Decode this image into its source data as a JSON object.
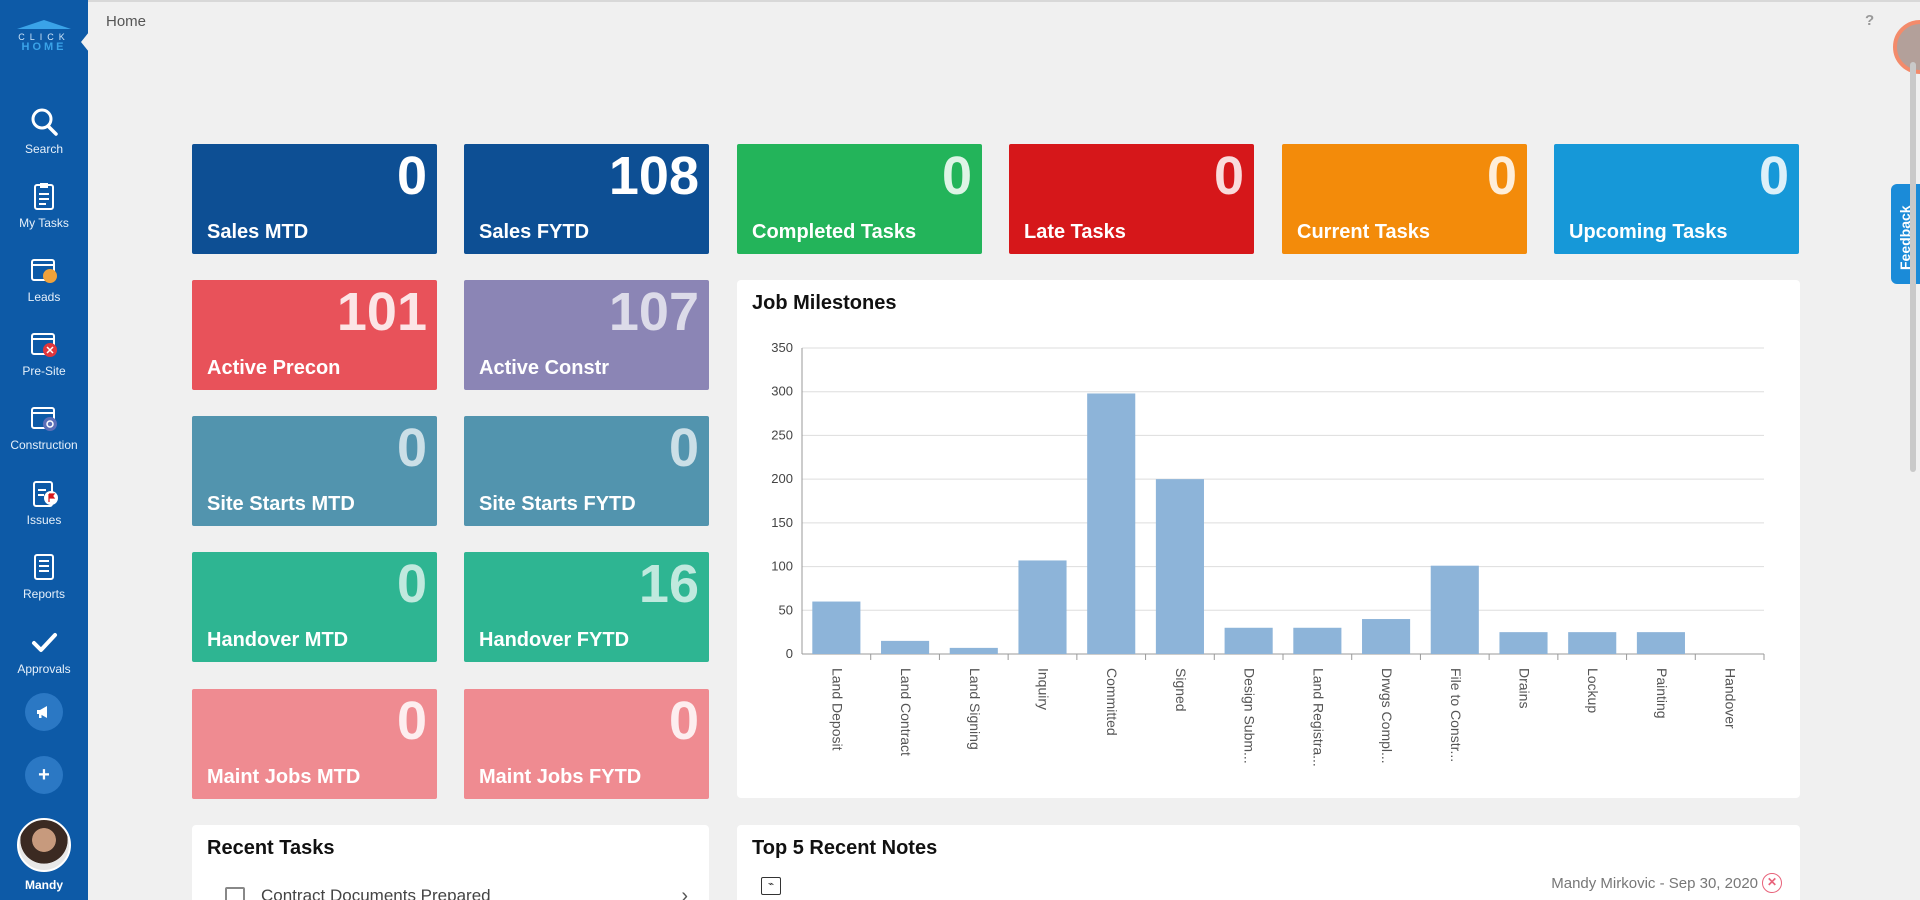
{
  "app": {
    "logo_line1": "CLICK",
    "logo_line2": "HOME",
    "breadcrumb": "Home",
    "help": "?",
    "feedback": "Feedback"
  },
  "sidebar": {
    "items": [
      {
        "label": "Search",
        "icon": "search-icon"
      },
      {
        "label": "My Tasks",
        "icon": "clipboard-icon"
      },
      {
        "label": "Leads",
        "icon": "leads-icon"
      },
      {
        "label": "Pre-Site",
        "icon": "presite-icon"
      },
      {
        "label": "Construction",
        "icon": "construction-icon"
      },
      {
        "label": "Issues",
        "icon": "issues-icon"
      },
      {
        "label": "Reports",
        "icon": "reports-icon"
      },
      {
        "label": "Approvals",
        "icon": "checkmark-icon"
      }
    ],
    "announce_icon": "megaphone-icon",
    "add_label": "+",
    "user_name": "Mandy"
  },
  "tiles": [
    {
      "label": "Sales MTD",
      "value": "0",
      "color": "#0d4f94"
    },
    {
      "label": "Sales FYTD",
      "value": "108",
      "color": "#0d4f94"
    },
    {
      "label": "Completed Tasks",
      "value": "0",
      "color": "#23b45a"
    },
    {
      "label": "Late Tasks",
      "value": "0",
      "color": "#d6171a"
    },
    {
      "label": "Current Tasks",
      "value": "0",
      "color": "#f38b0a"
    },
    {
      "label": "Upcoming Tasks",
      "value": "0",
      "color": "#1698d8"
    },
    {
      "label": "Active Precon",
      "value": "101",
      "color": "#e8525a"
    },
    {
      "label": "Active Constr",
      "value": "107",
      "color": "#8b85b5"
    },
    {
      "label": "Site Starts MTD",
      "value": "0",
      "color": "#5294ae"
    },
    {
      "label": "Site Starts FYTD",
      "value": "0",
      "color": "#5294ae"
    },
    {
      "label": "Handover MTD",
      "value": "0",
      "color": "#2eb592"
    },
    {
      "label": "Handover FYTD",
      "value": "16",
      "color": "#2eb592"
    },
    {
      "label": "Maint Jobs MTD",
      "value": "0",
      "color": "#ef8b91"
    },
    {
      "label": "Maint Jobs FYTD",
      "value": "0",
      "color": "#ef8b91"
    }
  ],
  "milestones": {
    "title": "Job Milestones"
  },
  "chart_data": {
    "type": "bar",
    "title": "Job Milestones",
    "xlabel": "",
    "ylabel": "",
    "categories": [
      "Land Deposit",
      "Land Contract",
      "Land Signing",
      "Inquiry",
      "Committed",
      "Signed",
      "Design Subm...",
      "Land Registra...",
      "Drwgs Compl...",
      "File to Constr...",
      "Drains",
      "Lockup",
      "Painting",
      "Handover"
    ],
    "values": [
      60,
      15,
      7,
      107,
      298,
      200,
      30,
      30,
      40,
      101,
      25,
      25,
      25,
      0
    ],
    "ylim": [
      0,
      350
    ],
    "yticks": [
      0,
      50,
      100,
      150,
      200,
      250,
      300,
      350
    ],
    "grid": true,
    "bar_color": "#8db4d9"
  },
  "recent_tasks": {
    "title": "Recent Tasks",
    "items": [
      {
        "label": "Contract Documents Prepared"
      }
    ]
  },
  "recent_notes": {
    "title": "Top 5 Recent Notes",
    "items": [
      {
        "meta": "Mandy Mirkovic - Sep 30, 2020"
      }
    ]
  }
}
